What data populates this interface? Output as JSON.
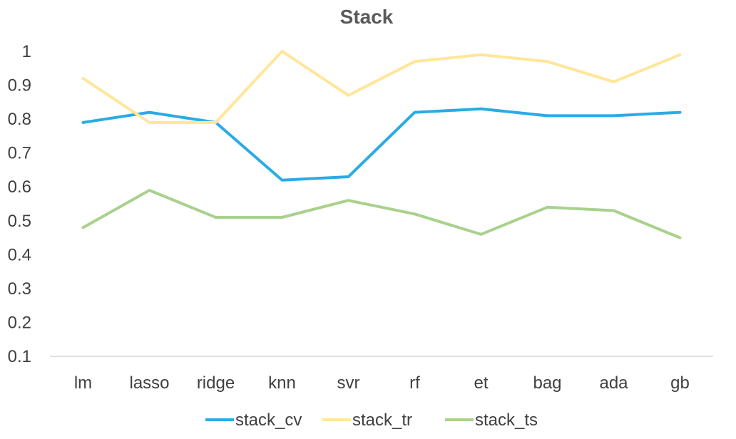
{
  "chart_data": {
    "type": "line",
    "title": "Stack",
    "xlabel": "",
    "ylabel": "",
    "categories": [
      "lm",
      "lasso",
      "ridge",
      "knn",
      "svr",
      "rf",
      "et",
      "bag",
      "ada",
      "gb"
    ],
    "ylim": [
      0.1,
      1.0
    ],
    "yticks": [
      0.1,
      0.2,
      0.3,
      0.4,
      0.5,
      0.6,
      0.7,
      0.8,
      0.9,
      1.0
    ],
    "ytick_labels": [
      "0.1",
      "0.2",
      "0.3",
      "0.4",
      "0.5",
      "0.6",
      "0.7",
      "0.8",
      "0.9",
      "1"
    ],
    "grid": false,
    "legend_position": "bottom",
    "series": [
      {
        "name": "stack_cv",
        "color": "#2AABE4",
        "values": [
          0.79,
          0.82,
          0.79,
          0.62,
          0.63,
          0.82,
          0.83,
          0.81,
          0.81,
          0.82
        ]
      },
      {
        "name": "stack_tr",
        "color": "#FFE699",
        "values": [
          0.92,
          0.79,
          0.79,
          1.0,
          0.87,
          0.97,
          0.99,
          0.97,
          0.91,
          0.99
        ]
      },
      {
        "name": "stack_ts",
        "color": "#A9D18E",
        "values": [
          0.48,
          0.59,
          0.51,
          0.51,
          0.56,
          0.52,
          0.46,
          0.54,
          0.53,
          0.45
        ]
      }
    ]
  }
}
